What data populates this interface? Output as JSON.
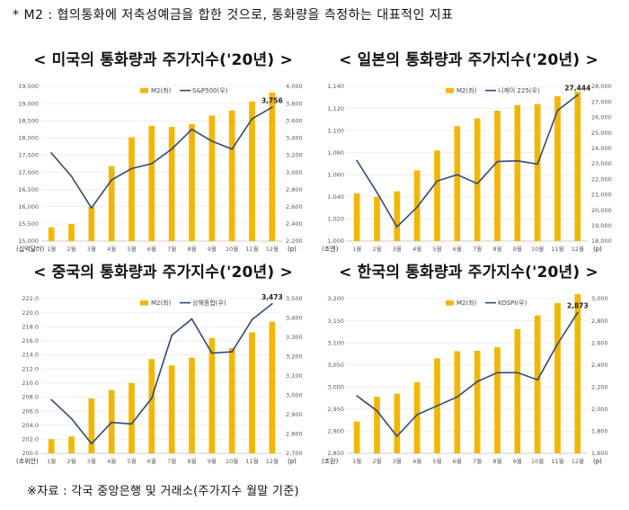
{
  "note": "* M2 : 협의통화에 저축성예금을 합한 것으로, 통화량을 측정하는 대표적인 지표",
  "source": "※자료 : 각국 중앙은행 및 거래소(주가지수 월말 기준)",
  "colors": {
    "bar": "#F2B705",
    "line": "#2F4A7A"
  },
  "chart_data": [
    {
      "type": "bar",
      "title": "< 미국의 통화량과 주가지수('20년) >",
      "categories": [
        "1월",
        "2월",
        "3월",
        "4월",
        "5월",
        "6월",
        "7월",
        "8월",
        "9월",
        "10월",
        "11월",
        "12월"
      ],
      "series": [
        {
          "name": "M2(좌)",
          "axis": "left",
          "kind": "bar",
          "values": [
            15400,
            15500,
            16000,
            17180,
            18020,
            18350,
            18320,
            18400,
            18650,
            18800,
            19060,
            19320
          ]
        },
        {
          "name": "S&P500(우)",
          "axis": "right",
          "kind": "line",
          "values": [
            3225,
            2954,
            2585,
            2912,
            3044,
            3100,
            3271,
            3500,
            3363,
            3270,
            3622,
            3756
          ]
        }
      ],
      "left_axis": {
        "min": 15000,
        "max": 19500,
        "step": 500,
        "ticks": [
          "15,000",
          "15,500",
          "16,000",
          "16,500",
          "17,000",
          "17,500",
          "18,000",
          "18,500",
          "19,000",
          "19,500"
        ]
      },
      "right_axis": {
        "min": 2200,
        "max": 4000,
        "step": 200,
        "ticks": [
          "2,200",
          "2,400",
          "2,600",
          "2,800",
          "3,000",
          "3,200",
          "3,400",
          "3,600",
          "3,800",
          "4,000"
        ]
      },
      "unit_left": "(십억달러)",
      "unit_x": "(p)",
      "end_label": "3,756"
    },
    {
      "type": "bar",
      "title": "< 일본의 통화량과 주가지수('20년) >",
      "categories": [
        "1월",
        "2월",
        "3월",
        "4월",
        "5월",
        "6월",
        "7월",
        "8월",
        "9월",
        "10월",
        "11월",
        "12월"
      ],
      "series": [
        {
          "name": "M2(좌)",
          "axis": "left",
          "kind": "bar",
          "values": [
            1043,
            1040,
            1045,
            1064,
            1082,
            1104,
            1111,
            1118,
            1123,
            1124,
            1131,
            1135
          ]
        },
        {
          "name": "니케이 225(우)",
          "axis": "right",
          "kind": "line",
          "values": [
            23205,
            21143,
            18917,
            20194,
            21878,
            22288,
            21710,
            23140,
            23185,
            22977,
            26434,
            27444
          ]
        }
      ],
      "left_axis": {
        "min": 1000,
        "max": 1140,
        "step": 20,
        "ticks": [
          "1,000",
          "1,020",
          "1,040",
          "1,060",
          "1,080",
          "1,100",
          "1,120",
          "1,140"
        ]
      },
      "right_axis": {
        "min": 18000,
        "max": 28000,
        "step": 1000,
        "ticks": [
          "18,000",
          "19,000",
          "20,000",
          "21,000",
          "22,000",
          "23,000",
          "24,000",
          "25,000",
          "26,000",
          "27,000",
          "28,000"
        ]
      },
      "unit_left": "(조엔)",
      "unit_x": "(p)",
      "end_label": "27,444"
    },
    {
      "type": "bar",
      "title": "< 중국의 통화량과 주가지수('20년) >",
      "categories": [
        "1월",
        "2월",
        "3월",
        "4월",
        "5월",
        "6월",
        "7월",
        "8월",
        "9월",
        "10월",
        "11월",
        "12월"
      ],
      "series": [
        {
          "name": "M2(좌)",
          "axis": "left",
          "kind": "bar",
          "values": [
            202.0,
            202.4,
            207.8,
            209.0,
            210.0,
            213.4,
            212.5,
            213.6,
            216.4,
            215.0,
            217.2,
            218.7
          ]
        },
        {
          "name": "상해종합(우)",
          "axis": "right",
          "kind": "line",
          "values": [
            2977,
            2880,
            2750,
            2860,
            2852,
            2985,
            3310,
            3395,
            3218,
            3225,
            3391,
            3473
          ]
        }
      ],
      "left_axis": {
        "min": 200.0,
        "max": 222.0,
        "step": 2,
        "ticks": [
          "200.0",
          "202.0",
          "204.0",
          "206.0",
          "208.0",
          "210.0",
          "212.0",
          "214.0",
          "216.0",
          "218.0",
          "220.0",
          "222.0"
        ]
      },
      "right_axis": {
        "min": 2700,
        "max": 3500,
        "step": 100,
        "ticks": [
          "2,700",
          "2,800",
          "2,900",
          "3,000",
          "3,100",
          "3,200",
          "3,300",
          "3,400",
          "3,500"
        ]
      },
      "unit_left": "(조위안)",
      "unit_x": "(p)",
      "end_label": "3,473"
    },
    {
      "type": "bar",
      "title": "< 한국의 통화량과 주가지수('20년) >",
      "categories": [
        "1월",
        "2월",
        "3월",
        "4월",
        "5월",
        "6월",
        "7월",
        "8월",
        "9월",
        "10월",
        "11월",
        "12월"
      ],
      "series": [
        {
          "name": "M2(좌)",
          "axis": "left",
          "kind": "bar",
          "values": [
            2922,
            2978,
            2985,
            3011,
            3065,
            3081,
            3082,
            3090,
            3131,
            3162,
            3190,
            3210
          ]
        },
        {
          "name": "KOSPI(우)",
          "axis": "right",
          "kind": "line",
          "values": [
            2120,
            1985,
            1755,
            1950,
            2030,
            2110,
            2250,
            2330,
            2330,
            2265,
            2590,
            2873
          ]
        }
      ],
      "left_axis": {
        "min": 2850,
        "max": 3200,
        "step": 50,
        "ticks": [
          "2,850",
          "2,900",
          "2,950",
          "3,000",
          "3,050",
          "3,100",
          "3,150",
          "3,200"
        ]
      },
      "right_axis": {
        "min": 1600,
        "max": 3000,
        "step": 200,
        "ticks": [
          "1,600",
          "1,800",
          "2,000",
          "2,200",
          "2,400",
          "2,600",
          "2,800",
          "3,000"
        ]
      },
      "unit_left": "(조원)",
      "unit_x": "(p)",
      "end_label": "2,873"
    }
  ]
}
